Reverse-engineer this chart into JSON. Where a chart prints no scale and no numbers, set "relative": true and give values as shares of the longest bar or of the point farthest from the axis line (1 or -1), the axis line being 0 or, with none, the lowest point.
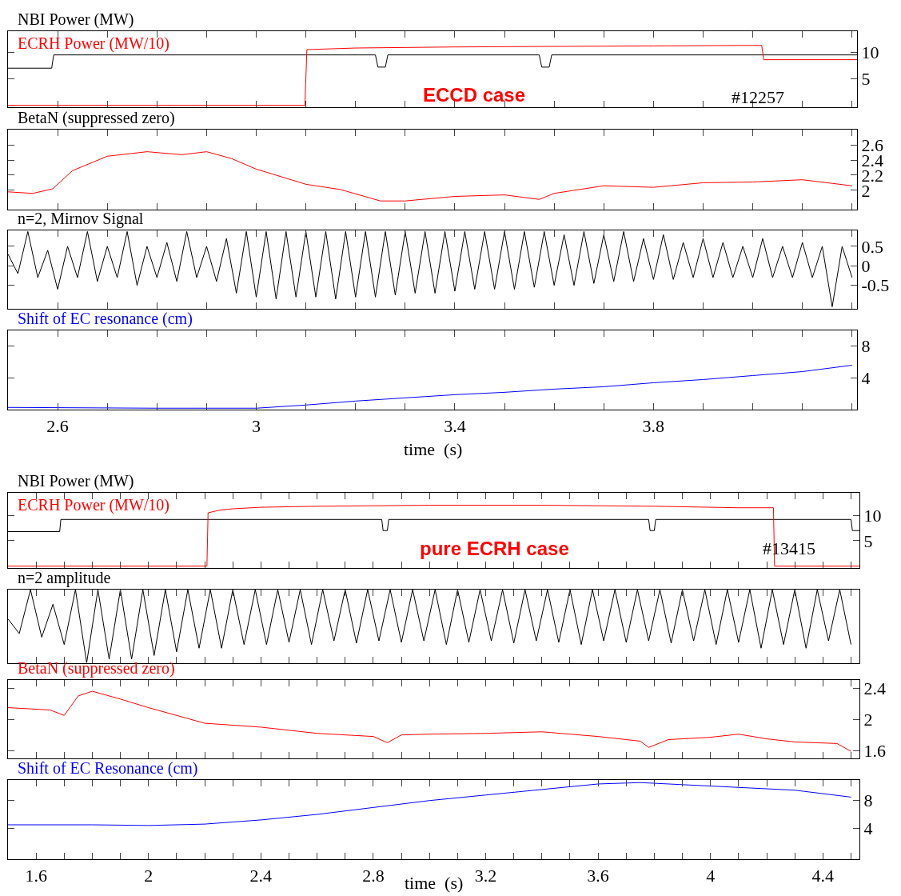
{
  "chart_data": [
    {
      "type": "line",
      "xlim": [
        2.5,
        4.21
      ],
      "ylim": [
        -0.4,
        14
      ],
      "yticks": [
        5,
        10
      ],
      "tick_labels": "y",
      "xticks": [
        2.6,
        {
          "value": 2.7,
          "label": null
        },
        {
          "value": 2.8,
          "label": null
        },
        {
          "value": 2.9,
          "label": null
        },
        3,
        {
          "value": 3.1,
          "label": null
        },
        {
          "value": 3.2,
          "label": null
        },
        {
          "value": 3.3,
          "label": null
        },
        3.4,
        {
          "value": 3.5,
          "label": null
        },
        {
          "value": 3.6,
          "label": null
        },
        {
          "value": 3.7,
          "label": null
        },
        3.8,
        {
          "value": 3.9,
          "label": null
        },
        {
          "value": 4.0,
          "label": null
        },
        {
          "value": 4.1,
          "label": null
        },
        {
          "value": 4.2,
          "label": null
        }
      ],
      "annotations": [
        "ECCD case",
        "#12257"
      ],
      "series": [
        {
          "name": "NBI Power (MW)",
          "color": "#000000",
          "x": [
            2.5,
            2.588,
            2.592,
            3.24,
            3.245,
            3.26,
            3.265,
            3.57,
            3.575,
            3.59,
            3.595,
            4.21
          ],
          "values": [
            7,
            7,
            9.5,
            9.5,
            7.2,
            7.2,
            9.5,
            9.5,
            7.2,
            7.2,
            9.5,
            9.5
          ]
        },
        {
          "name": "ECRH Power (MW/10)",
          "color": "#ff0000",
          "x": [
            2.5,
            3.098,
            3.102,
            3.2,
            3.4,
            3.6,
            3.8,
            4.0,
            4.018,
            4.022,
            4.21
          ],
          "values": [
            0,
            0,
            10.5,
            10.8,
            11.0,
            11.1,
            11.2,
            11.3,
            11.3,
            8.6,
            8.6
          ]
        }
      ]
    },
    {
      "type": "line",
      "title": "BetaN (suppressed zero)",
      "xlim": [
        2.5,
        4.21
      ],
      "ylim": [
        1.75,
        2.8
      ],
      "yticks": [
        2,
        2.2,
        2.4,
        2.6
      ],
      "tick_labels": "y",
      "xticks": [
        2.6,
        {
          "value": 2.7,
          "label": null
        },
        {
          "value": 2.8,
          "label": null
        },
        {
          "value": 2.9,
          "label": null
        },
        3,
        {
          "value": 3.1,
          "label": null
        },
        {
          "value": 3.2,
          "label": null
        },
        {
          "value": 3.3,
          "label": null
        },
        3.4,
        {
          "value": 3.5,
          "label": null
        },
        {
          "value": 3.6,
          "label": null
        },
        {
          "value": 3.7,
          "label": null
        },
        3.8,
        {
          "value": 3.9,
          "label": null
        },
        {
          "value": 4.0,
          "label": null
        },
        {
          "value": 4.1,
          "label": null
        },
        {
          "value": 4.2,
          "label": null
        }
      ],
      "series": [
        {
          "color": "#ff0000",
          "x": [
            2.5,
            2.55,
            2.59,
            2.63,
            2.7,
            2.78,
            2.85,
            2.9,
            2.95,
            3.0,
            3.05,
            3.1,
            3.17,
            3.25,
            3.3,
            3.4,
            3.5,
            3.57,
            3.6,
            3.7,
            3.8,
            3.9,
            4.0,
            4.1,
            4.2
          ],
          "values": [
            1.98,
            1.96,
            2.02,
            2.26,
            2.45,
            2.51,
            2.47,
            2.51,
            2.42,
            2.28,
            2.18,
            2.08,
            2.01,
            1.86,
            1.86,
            1.92,
            1.94,
            1.88,
            1.96,
            2.06,
            2.04,
            2.1,
            2.11,
            2.14,
            2.06
          ]
        }
      ]
    },
    {
      "type": "line",
      "title": "n=2, Mirnov Signal",
      "xlim": [
        2.5,
        4.21
      ],
      "ylim": [
        -1.1,
        0.9
      ],
      "yticks": [
        -0.5,
        0,
        0.5
      ],
      "tick_labels": "y",
      "xticks": [
        2.6,
        {
          "value": 2.7,
          "label": null
        },
        {
          "value": 2.8,
          "label": null
        },
        {
          "value": 2.9,
          "label": null
        },
        3,
        {
          "value": 3.1,
          "label": null
        },
        {
          "value": 3.2,
          "label": null
        },
        {
          "value": 3.3,
          "label": null
        },
        3.4,
        {
          "value": 3.5,
          "label": null
        },
        {
          "value": 3.6,
          "label": null
        },
        {
          "value": 3.7,
          "label": null
        },
        3.8,
        {
          "value": 3.9,
          "label": null
        },
        {
          "value": 4.0,
          "label": null
        },
        {
          "value": 4.1,
          "label": null
        },
        {
          "value": 4.2,
          "label": null
        }
      ],
      "series": [
        {
          "color": "#000000",
          "x": [
            2.5,
            2.52,
            2.54,
            2.56,
            2.58,
            2.6,
            2.62,
            2.64,
            2.66,
            2.68,
            2.7,
            2.72,
            2.74,
            2.76,
            2.78,
            2.8,
            2.82,
            2.84,
            2.86,
            2.88,
            2.9,
            2.92,
            2.94,
            2.96,
            2.98,
            3.0,
            3.02,
            3.04,
            3.06,
            3.08,
            3.1,
            3.12,
            3.14,
            3.16,
            3.18,
            3.2,
            3.22,
            3.24,
            3.26,
            3.28,
            3.3,
            3.32,
            3.34,
            3.36,
            3.38,
            3.4,
            3.42,
            3.44,
            3.46,
            3.48,
            3.5,
            3.52,
            3.54,
            3.56,
            3.58,
            3.6,
            3.62,
            3.64,
            3.66,
            3.68,
            3.7,
            3.72,
            3.74,
            3.76,
            3.78,
            3.8,
            3.82,
            3.84,
            3.86,
            3.88,
            3.9,
            3.92,
            3.94,
            3.96,
            3.98,
            4.0,
            4.02,
            4.04,
            4.06,
            4.08,
            4.1,
            4.12,
            4.14,
            4.16,
            4.18,
            4.2
          ],
          "values": [
            0.3,
            -0.2,
            0.88,
            -0.3,
            0.4,
            -0.6,
            0.5,
            -0.3,
            0.88,
            -0.4,
            0.5,
            -0.3,
            0.88,
            -0.5,
            0.5,
            -0.3,
            0.6,
            -0.4,
            0.88,
            -0.3,
            0.5,
            -0.4,
            0.7,
            -0.7,
            0.88,
            -0.8,
            0.88,
            -0.85,
            0.88,
            -0.8,
            0.88,
            -0.8,
            0.88,
            -0.85,
            0.88,
            -0.8,
            0.88,
            -0.8,
            0.88,
            -0.75,
            0.88,
            -0.7,
            0.88,
            -0.7,
            0.88,
            -0.65,
            0.88,
            -0.6,
            0.88,
            -0.6,
            0.88,
            -0.6,
            0.88,
            -0.55,
            0.88,
            -0.5,
            0.8,
            -0.5,
            0.88,
            -0.45,
            0.8,
            -0.4,
            0.88,
            -0.4,
            0.7,
            -0.35,
            0.8,
            -0.35,
            0.6,
            -0.3,
            0.7,
            -0.3,
            0.6,
            -0.3,
            0.5,
            -0.3,
            0.7,
            -0.3,
            0.5,
            -0.3,
            0.6,
            -0.3,
            0.5,
            -1.05,
            0.5,
            -0.3
          ]
        }
      ]
    },
    {
      "type": "line",
      "xlabel": "time  (s)",
      "xlim": [
        2.5,
        4.21
      ],
      "ylim": [
        0,
        10
      ],
      "yticks": [
        4,
        8
      ],
      "xticks": [
        2.6,
        {
          "value": 2.7,
          "label": null
        },
        {
          "value": 2.8,
          "label": null
        },
        {
          "value": 2.9,
          "label": null
        },
        3,
        {
          "value": 3.1,
          "label": null
        },
        {
          "value": 3.2,
          "label": null
        },
        {
          "value": 3.3,
          "label": null
        },
        3.4,
        {
          "value": 3.5,
          "label": null
        },
        {
          "value": 3.6,
          "label": null
        },
        {
          "value": 3.7,
          "label": null
        },
        3.8,
        {
          "value": 3.9,
          "label": null
        },
        {
          "value": 4.0,
          "label": null
        },
        {
          "value": 4.1,
          "label": null
        },
        {
          "value": 4.2,
          "label": null
        }
      ],
      "series": [
        {
          "name": "Shift of EC resonance (cm)",
          "color": "#0000ff",
          "x": [
            2.5,
            2.8,
            3.0,
            3.1,
            3.2,
            3.3,
            3.4,
            3.5,
            3.6,
            3.7,
            3.8,
            3.9,
            4.0,
            4.1,
            4.2
          ],
          "values": [
            0.3,
            0.2,
            0.2,
            0.6,
            1.1,
            1.5,
            1.9,
            2.2,
            2.6,
            2.9,
            3.4,
            3.8,
            4.3,
            4.8,
            5.6
          ]
        }
      ]
    },
    {
      "type": "line",
      "xlim": [
        1.5,
        4.53
      ],
      "ylim": [
        -0.4,
        14.5
      ],
      "yticks": [
        5,
        10
      ],
      "tick_labels": "y",
      "xticks": [
        1.6,
        {
          "value": 1.7,
          "label": null
        },
        {
          "value": 1.8,
          "label": null
        },
        {
          "value": 1.9,
          "label": null
        },
        2,
        {
          "value": 2.1,
          "label": null
        },
        {
          "value": 2.2,
          "label": null
        },
        {
          "value": 2.3,
          "label": null
        },
        2.4,
        {
          "value": 2.5,
          "label": null
        },
        {
          "value": 2.6,
          "label": null
        },
        {
          "value": 2.7,
          "label": null
        },
        2.8,
        {
          "value": 2.9,
          "label": null
        },
        {
          "value": 3.0,
          "label": null
        },
        {
          "value": 3.1,
          "label": null
        },
        3.2,
        {
          "value": 3.3,
          "label": null
        },
        {
          "value": 3.4,
          "label": null
        },
        {
          "value": 3.5,
          "label": null
        },
        3.6,
        {
          "value": 3.7,
          "label": null
        },
        {
          "value": 3.8,
          "label": null
        },
        {
          "value": 3.9,
          "label": null
        },
        4,
        {
          "value": 4.1,
          "label": null
        },
        {
          "value": 4.2,
          "label": null
        },
        {
          "value": 4.3,
          "label": null
        },
        4.4,
        {
          "value": 4.5,
          "label": null
        }
      ],
      "annotations": [
        "pure ECRH case",
        "#13415"
      ],
      "series": [
        {
          "name": "NBI Power (MW)",
          "color": "#000000",
          "x": [
            1.5,
            1.684,
            1.688,
            2.83,
            2.835,
            2.85,
            2.855,
            3.78,
            3.785,
            3.8,
            3.805,
            4.5,
            4.505,
            4.53
          ],
          "values": [
            6.8,
            6.8,
            9.2,
            9.2,
            7,
            7,
            9.2,
            9.2,
            7,
            7,
            9.2,
            9.2,
            7,
            7
          ]
        },
        {
          "name": "ECRH Power (MW/10)",
          "color": "#ff0000",
          "x": [
            1.5,
            2.208,
            2.212,
            2.25,
            2.3,
            2.4,
            2.6,
            3.0,
            3.4,
            3.8,
            4.1,
            4.224,
            4.228,
            4.53
          ],
          "values": [
            0,
            0,
            10.5,
            11,
            11.3,
            11.6,
            11.8,
            12,
            12,
            11.8,
            11.5,
            11.5,
            0,
            0
          ]
        }
      ]
    },
    {
      "type": "line",
      "title": "n=2 amplitude",
      "relative": true,
      "xlim": [
        1.5,
        4.53
      ],
      "tick_labels": false,
      "xticks": [
        1.6,
        {
          "value": 1.7,
          "label": null
        },
        {
          "value": 1.8,
          "label": null
        },
        {
          "value": 1.9,
          "label": null
        },
        2,
        {
          "value": 2.1,
          "label": null
        },
        {
          "value": 2.2,
          "label": null
        },
        {
          "value": 2.3,
          "label": null
        },
        2.4,
        {
          "value": 2.5,
          "label": null
        },
        {
          "value": 2.6,
          "label": null
        },
        {
          "value": 2.7,
          "label": null
        },
        2.8,
        {
          "value": 2.9,
          "label": null
        },
        {
          "value": 3.0,
          "label": null
        },
        {
          "value": 3.1,
          "label": null
        },
        3.2,
        {
          "value": 3.3,
          "label": null
        },
        {
          "value": 3.4,
          "label": null
        },
        {
          "value": 3.5,
          "label": null
        },
        3.6,
        {
          "value": 3.7,
          "label": null
        },
        {
          "value": 3.8,
          "label": null
        },
        {
          "value": 3.9,
          "label": null
        },
        4,
        {
          "value": 4.1,
          "label": null
        },
        {
          "value": 4.2,
          "label": null
        },
        {
          "value": 4.3,
          "label": null
        },
        4.4,
        {
          "value": 4.5,
          "label": null
        }
      ],
      "series": [
        {
          "color": "#000000",
          "x": [
            1.5,
            1.54,
            1.58,
            1.62,
            1.66,
            1.7,
            1.74,
            1.78,
            1.82,
            1.86,
            1.9,
            1.94,
            1.98,
            2.02,
            2.06,
            2.1,
            2.14,
            2.18,
            2.22,
            2.26,
            2.3,
            2.34,
            2.38,
            2.42,
            2.46,
            2.5,
            2.54,
            2.58,
            2.62,
            2.66,
            2.7,
            2.74,
            2.78,
            2.82,
            2.86,
            2.9,
            2.94,
            2.98,
            3.02,
            3.06,
            3.1,
            3.14,
            3.18,
            3.22,
            3.26,
            3.3,
            3.34,
            3.38,
            3.42,
            3.46,
            3.5,
            3.54,
            3.58,
            3.62,
            3.66,
            3.7,
            3.74,
            3.78,
            3.82,
            3.86,
            3.9,
            3.94,
            3.98,
            4.02,
            4.06,
            4.1,
            4.14,
            4.18,
            4.22,
            4.26,
            4.3,
            4.34,
            4.38,
            4.42,
            4.46,
            4.5
          ],
          "values": [
            0.6,
            0.4,
            1.0,
            0.35,
            0.8,
            0.25,
            1.0,
            0.0,
            1.0,
            0.05,
            1.0,
            0.05,
            1.0,
            0.1,
            1.0,
            0.15,
            1.0,
            0.2,
            1.0,
            0.2,
            1.0,
            0.25,
            1.0,
            0.25,
            1.0,
            0.28,
            1.0,
            0.25,
            1.0,
            0.3,
            1.0,
            0.27,
            1.0,
            0.3,
            1.0,
            0.28,
            1.0,
            0.3,
            1.0,
            0.25,
            1.0,
            0.28,
            1.0,
            0.3,
            1.0,
            0.27,
            1.0,
            0.3,
            1.0,
            0.28,
            1.0,
            0.25,
            1.0,
            0.3,
            1.0,
            0.28,
            1.0,
            0.3,
            1.0,
            0.27,
            1.0,
            0.3,
            1.0,
            0.25,
            1.0,
            0.28,
            1.0,
            0.2,
            1.0,
            0.25,
            1.0,
            0.2,
            1.0,
            0.3,
            1.0,
            0.25
          ]
        }
      ]
    },
    {
      "type": "line",
      "xlim": [
        1.5,
        4.53
      ],
      "ylim": [
        1.5,
        2.5
      ],
      "yticks": [
        1.6,
        2,
        2.4
      ],
      "tick_labels": "y",
      "xticks": [
        1.6,
        {
          "value": 1.7,
          "label": null
        },
        {
          "value": 1.8,
          "label": null
        },
        {
          "value": 1.9,
          "label": null
        },
        2,
        {
          "value": 2.1,
          "label": null
        },
        {
          "value": 2.2,
          "label": null
        },
        {
          "value": 2.3,
          "label": null
        },
        2.4,
        {
          "value": 2.5,
          "label": null
        },
        {
          "value": 2.6,
          "label": null
        },
        {
          "value": 2.7,
          "label": null
        },
        2.8,
        {
          "value": 2.9,
          "label": null
        },
        {
          "value": 3.0,
          "label": null
        },
        {
          "value": 3.1,
          "label": null
        },
        3.2,
        {
          "value": 3.3,
          "label": null
        },
        {
          "value": 3.4,
          "label": null
        },
        {
          "value": 3.5,
          "label": null
        },
        3.6,
        {
          "value": 3.7,
          "label": null
        },
        {
          "value": 3.8,
          "label": null
        },
        {
          "value": 3.9,
          "label": null
        },
        4,
        {
          "value": 4.1,
          "label": null
        },
        {
          "value": 4.2,
          "label": null
        },
        {
          "value": 4.3,
          "label": null
        },
        4.4,
        {
          "value": 4.5,
          "label": null
        }
      ],
      "series": [
        {
          "name": "BetaN (suppressed zero)",
          "color": "#ff0000",
          "x": [
            1.5,
            1.65,
            1.7,
            1.75,
            1.8,
            1.9,
            2.0,
            2.1,
            2.2,
            2.4,
            2.6,
            2.8,
            2.85,
            2.9,
            3.0,
            3.2,
            3.4,
            3.6,
            3.75,
            3.78,
            3.85,
            4.0,
            4.1,
            4.2,
            4.3,
            4.45,
            4.5
          ],
          "values": [
            2.15,
            2.12,
            2.05,
            2.3,
            2.36,
            2.26,
            2.15,
            2.05,
            1.95,
            1.9,
            1.82,
            1.78,
            1.7,
            1.8,
            1.81,
            1.82,
            1.84,
            1.78,
            1.72,
            1.64,
            1.74,
            1.77,
            1.81,
            1.75,
            1.71,
            1.69,
            1.59
          ]
        }
      ]
    },
    {
      "type": "line",
      "xlabel": "time  (s)",
      "xlim": [
        1.5,
        4.53
      ],
      "ylim": [
        -0.5,
        11
      ],
      "yticks": [
        4,
        8
      ],
      "xticks": [
        1.6,
        {
          "value": 1.7,
          "label": null
        },
        {
          "value": 1.8,
          "label": null
        },
        {
          "value": 1.9,
          "label": null
        },
        2,
        {
          "value": 2.1,
          "label": null
        },
        {
          "value": 2.2,
          "label": null
        },
        {
          "value": 2.3,
          "label": null
        },
        2.4,
        {
          "value": 2.5,
          "label": null
        },
        {
          "value": 2.6,
          "label": null
        },
        {
          "value": 2.7,
          "label": null
        },
        2.8,
        {
          "value": 2.9,
          "label": null
        },
        {
          "value": 3.0,
          "label": null
        },
        {
          "value": 3.1,
          "label": null
        },
        3.2,
        {
          "value": 3.3,
          "label": null
        },
        {
          "value": 3.4,
          "label": null
        },
        {
          "value": 3.5,
          "label": null
        },
        3.6,
        {
          "value": 3.7,
          "label": null
        },
        {
          "value": 3.8,
          "label": null
        },
        {
          "value": 3.9,
          "label": null
        },
        4,
        {
          "value": 4.1,
          "label": null
        },
        {
          "value": 4.2,
          "label": null
        },
        {
          "value": 4.3,
          "label": null
        },
        4.4,
        {
          "value": 4.5,
          "label": null
        }
      ],
      "series": [
        {
          "name": "Shift of EC Resonance (cm)",
          "color": "#0000ff",
          "x": [
            1.5,
            1.8,
            2.0,
            2.2,
            2.4,
            2.6,
            2.8,
            3.0,
            3.2,
            3.4,
            3.6,
            3.75,
            3.9,
            4.1,
            4.3,
            4.5
          ],
          "values": [
            4.5,
            4.5,
            4.4,
            4.6,
            5.2,
            6.0,
            7.0,
            8.0,
            8.8,
            9.6,
            10.4,
            10.6,
            10.3,
            9.9,
            9.5,
            8.5
          ]
        }
      ]
    }
  ]
}
